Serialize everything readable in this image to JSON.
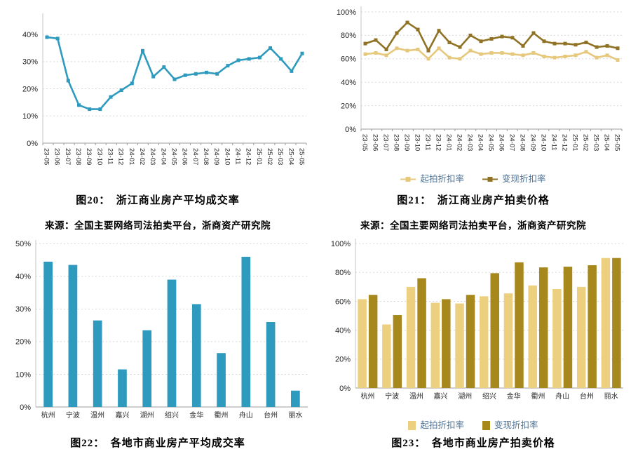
{
  "page": {
    "background": "#ffffff"
  },
  "colors": {
    "teal": "#2e9bbe",
    "light_gold_line": "#e6c87c",
    "dark_gold_line": "#8f7224",
    "light_gold_bar": "#ecd07f",
    "dark_gold_bar": "#a6881d",
    "legend_text": "#4f7396",
    "grid_line": "#d9d9d9",
    "axis_line": "#9d9d9d",
    "tick_label": "#262626"
  },
  "chart_data": [
    {
      "type": "line",
      "title": "图20：　浙江商业房产平均成交率",
      "source": "来源：全国主要网络司法拍卖平台，浙商资产研究院",
      "x": [
        "23-05",
        "23-06",
        "23-07",
        "23-08",
        "23-09",
        "23-10",
        "23-11",
        "23-12",
        "24-01",
        "24-02",
        "24-03",
        "24-04",
        "24-05",
        "24-06",
        "24-07",
        "24-08",
        "24-09",
        "24-10",
        "24-11",
        "24-12",
        "25-01",
        "25-02",
        "25-03",
        "25-04",
        "25-05"
      ],
      "series": [
        {
          "color": "#2e9bbe",
          "values": [
            39,
            38.5,
            23,
            14,
            12.5,
            12.5,
            17,
            19.5,
            22,
            34,
            24.5,
            28,
            23.5,
            25,
            25.5,
            26,
            25.5,
            28.5,
            30.5,
            31,
            31.5,
            35,
            31,
            26.5,
            33
          ]
        }
      ],
      "ylim": [
        0,
        47
      ],
      "yticks": [
        0,
        10,
        20,
        30,
        40
      ],
      "grid": true,
      "legend_position": "none",
      "x_label_rotation": 90
    },
    {
      "type": "line",
      "title": "图21：　浙江商业房产拍卖价格",
      "source": "来源：全国主要网络司法拍卖平台，浙商资产研究院",
      "x": [
        "23-05",
        "23-06",
        "23-07",
        "23-08",
        "23-09",
        "23-10",
        "23-11",
        "23-12",
        "24-01",
        "24-02",
        "24-03",
        "24-04",
        "24-05",
        "24-06",
        "24-07",
        "24-08",
        "24-09",
        "24-10",
        "24-11",
        "24-12",
        "25-01",
        "25-02",
        "25-03",
        "25-04",
        "25-05"
      ],
      "series": [
        {
          "name": "起拍折扣率",
          "color": "#e6c87c",
          "values": [
            64,
            65,
            63,
            69,
            67,
            68,
            60,
            69,
            61,
            60,
            67,
            64,
            65,
            65,
            64,
            63,
            65,
            62,
            61,
            62,
            63,
            66,
            61,
            63,
            59
          ]
        },
        {
          "name": "变现折扣率",
          "color": "#8f7224",
          "values": [
            73,
            76,
            68,
            82,
            91,
            85,
            67,
            84,
            74,
            70,
            80,
            75,
            77,
            79,
            78,
            71,
            82,
            75,
            73,
            73,
            72,
            74,
            70,
            71,
            69
          ]
        }
      ],
      "ylim": [
        0,
        103
      ],
      "yticks": [
        0,
        20,
        40,
        60,
        80,
        100
      ],
      "grid": true,
      "legend_position": "bottom",
      "x_label_rotation": 90
    },
    {
      "type": "bar",
      "title": "图22：　各地市商业房产平均成交率",
      "x": [
        "杭州",
        "宁波",
        "温州",
        "嘉兴",
        "湖州",
        "绍兴",
        "金华",
        "衢州",
        "舟山",
        "台州",
        "丽水"
      ],
      "series": [
        {
          "color": "#2e9bbe",
          "values": [
            44.5,
            43.5,
            26.5,
            11.5,
            23.5,
            39,
            31.5,
            16.5,
            46,
            26,
            5
          ]
        }
      ],
      "ylim": [
        0,
        50.5
      ],
      "yticks": [
        0,
        10,
        20,
        30,
        40,
        50
      ],
      "grid": true,
      "legend_position": "none",
      "x_label_rotation": 0
    },
    {
      "type": "bar",
      "title": "图23：　各地市商业房产拍卖价格",
      "x": [
        "杭州",
        "宁波",
        "温州",
        "嘉兴",
        "湖州",
        "绍兴",
        "金华",
        "衢州",
        "舟山",
        "台州",
        "丽水"
      ],
      "series": [
        {
          "name": "起拍折扣率",
          "color": "#ecd07f",
          "values": [
            61.5,
            44,
            70,
            59,
            58.5,
            63.5,
            65.5,
            71,
            68.5,
            70,
            90
          ]
        },
        {
          "name": "变现折扣率",
          "color": "#a6881d",
          "values": [
            64.5,
            50.5,
            76,
            61.5,
            64.5,
            79.5,
            87,
            83.5,
            84,
            85,
            90
          ]
        }
      ],
      "ylim": [
        0,
        102
      ],
      "yticks": [
        0,
        20,
        40,
        60,
        80,
        100
      ],
      "grid": true,
      "legend_position": "bottom",
      "x_label_rotation": 0
    }
  ]
}
